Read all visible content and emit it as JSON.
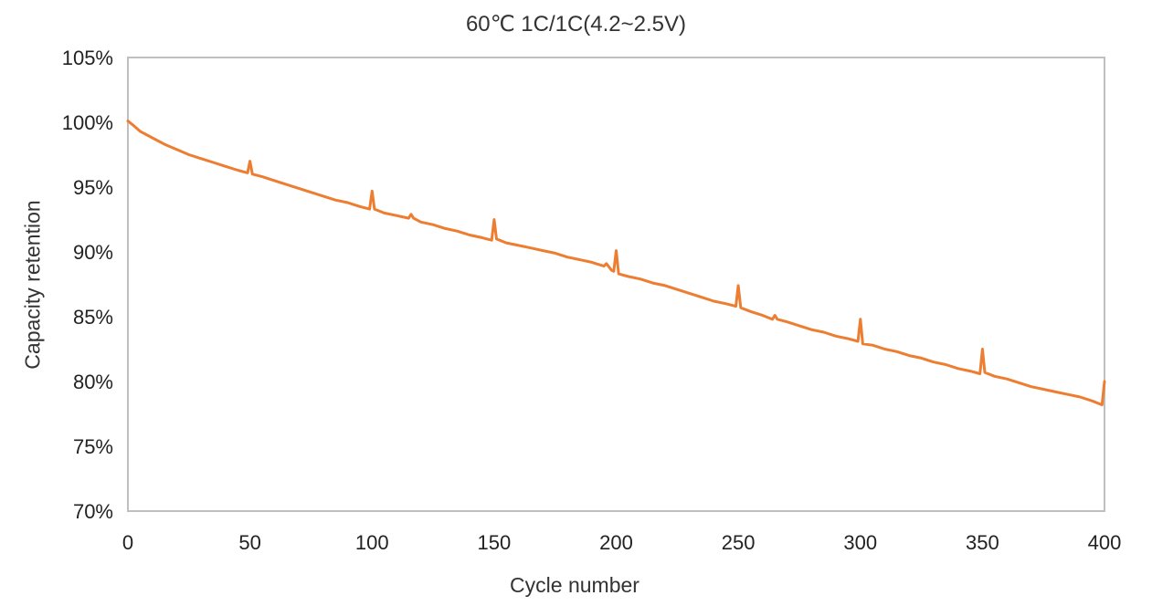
{
  "chart_data": {
    "type": "line",
    "title": "60℃ 1C/1C(4.2~2.5V)",
    "xlabel": "Cycle number",
    "ylabel": "Capacity retention",
    "xlim": [
      0,
      400
    ],
    "ylim": [
      70,
      105
    ],
    "x_ticks": [
      "0",
      "50",
      "100",
      "150",
      "200",
      "250",
      "300",
      "350",
      "400"
    ],
    "y_ticks": [
      "70%",
      "75%",
      "80%",
      "85%",
      "90%",
      "95%",
      "100%",
      "105%"
    ],
    "grid": false,
    "legend": "none",
    "colors": {
      "series": "#ed7d31",
      "axis": "#bfbfbf"
    },
    "series": [
      {
        "x": [
          0,
          2,
          5,
          10,
          15,
          20,
          25,
          30,
          35,
          40,
          45,
          49,
          50,
          51,
          55,
          60,
          65,
          70,
          75,
          80,
          85,
          90,
          95,
          99,
          100,
          101,
          105,
          110,
          115,
          116,
          117,
          120,
          125,
          130,
          135,
          140,
          145,
          149,
          150,
          151,
          155,
          160,
          165,
          170,
          175,
          180,
          185,
          190,
          195,
          196,
          198,
          199,
          200,
          201,
          205,
          210,
          215,
          220,
          225,
          230,
          235,
          240,
          245,
          249,
          250,
          251,
          255,
          260,
          264,
          265,
          266,
          270,
          275,
          280,
          285,
          290,
          295,
          299,
          300,
          301,
          305,
          310,
          315,
          320,
          325,
          330,
          335,
          340,
          345,
          349,
          350,
          351,
          355,
          360,
          365,
          370,
          375,
          380,
          385,
          390,
          395,
          399,
          400
        ],
        "values": [
          100.1,
          99.8,
          99.3,
          98.8,
          98.3,
          97.9,
          97.5,
          97.2,
          96.9,
          96.6,
          96.3,
          96.1,
          97.0,
          96.0,
          95.8,
          95.5,
          95.2,
          94.9,
          94.6,
          94.3,
          94.0,
          93.8,
          93.5,
          93.3,
          94.7,
          93.3,
          93.0,
          92.8,
          92.6,
          92.9,
          92.6,
          92.3,
          92.1,
          91.8,
          91.6,
          91.3,
          91.1,
          90.9,
          92.5,
          91.0,
          90.7,
          90.5,
          90.3,
          90.1,
          89.9,
          89.6,
          89.4,
          89.2,
          88.9,
          89.1,
          88.6,
          88.5,
          90.1,
          88.3,
          88.1,
          87.9,
          87.6,
          87.4,
          87.1,
          86.8,
          86.5,
          86.2,
          86.0,
          85.8,
          87.4,
          85.7,
          85.4,
          85.1,
          84.8,
          85.1,
          84.8,
          84.6,
          84.3,
          84.0,
          83.8,
          83.5,
          83.3,
          83.1,
          84.8,
          82.9,
          82.8,
          82.5,
          82.3,
          82.0,
          81.8,
          81.5,
          81.3,
          81.0,
          80.8,
          80.6,
          82.5,
          80.7,
          80.4,
          80.2,
          79.9,
          79.6,
          79.4,
          79.2,
          79.0,
          78.8,
          78.5,
          78.2,
          80.0
        ]
      }
    ]
  }
}
